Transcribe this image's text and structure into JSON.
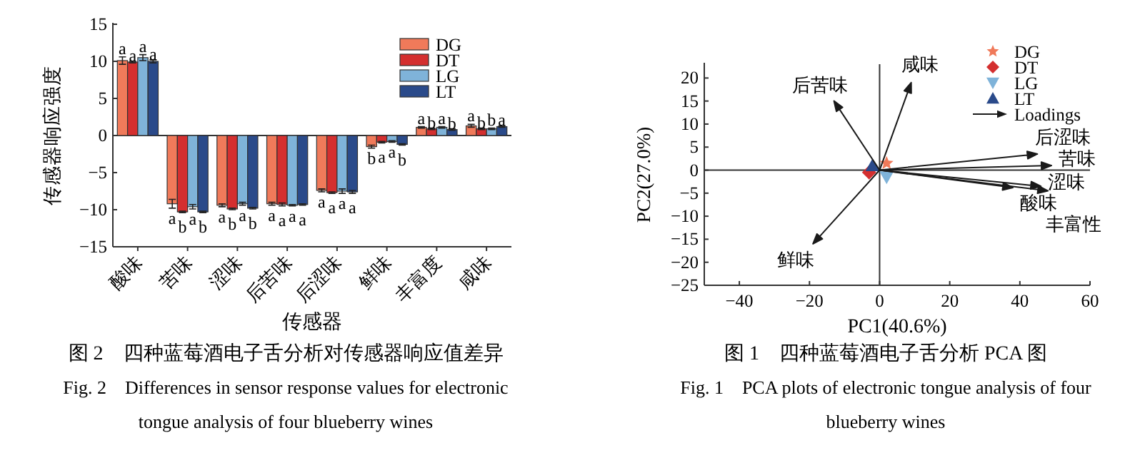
{
  "chart_data": [
    {
      "type": "bar",
      "xlabel": "传感器",
      "ylabel": "传感器响应强度",
      "categories": [
        "酸味",
        "苦味",
        "涩味",
        "后苦味",
        "后涩味",
        "鲜味",
        "丰富度",
        "咸味"
      ],
      "series": [
        {
          "name": "DG",
          "color": "#f07a5a",
          "values": [
            10.1,
            -9.2,
            -9.4,
            -9.2,
            -7.4,
            -1.5,
            1.1,
            1.3
          ],
          "errors": [
            0.5,
            0.6,
            0.2,
            0.2,
            0.2,
            0.2,
            0.1,
            0.2
          ],
          "value_labels": [
            "a",
            "a",
            "a",
            "a",
            "a",
            "b",
            "a",
            "a"
          ]
        },
        {
          "name": "DT",
          "color": "#d42f2f",
          "values": [
            9.9,
            -10.3,
            -9.9,
            -9.3,
            -7.7,
            -0.9,
            0.9,
            0.9
          ],
          "errors": [
            0.1,
            0.1,
            0.1,
            0.2,
            0.1,
            0.1,
            0.1,
            0.1
          ],
          "value_labels": [
            "a",
            "b",
            "b",
            "a",
            "a",
            "a",
            "b",
            "b"
          ]
        },
        {
          "name": "LG",
          "color": "#7fb3d9",
          "values": [
            10.5,
            -9.6,
            -9.2,
            -9.4,
            -7.5,
            -0.8,
            1.1,
            0.9
          ],
          "errors": [
            0.4,
            0.3,
            0.2,
            0.1,
            0.3,
            0.1,
            0.1,
            0.1
          ],
          "value_labels": [
            "a",
            "a",
            "a",
            "a",
            "a",
            "a",
            "a",
            "b"
          ]
        },
        {
          "name": "LT",
          "color": "#2a4a8a",
          "values": [
            10.0,
            -10.3,
            -9.8,
            -9.3,
            -7.6,
            -1.2,
            0.8,
            1.2
          ],
          "errors": [
            0.2,
            0.1,
            0.1,
            0.1,
            0.2,
            0.1,
            0.1,
            0.1
          ],
          "value_labels": [
            "a",
            "b",
            "b",
            "a",
            "a",
            "b",
            "b",
            "a"
          ]
        }
      ],
      "ylim": [
        -15,
        15
      ],
      "yticks": [
        -15,
        -10,
        -5,
        0,
        5,
        10,
        15
      ],
      "legend": "top right",
      "ref_lines": [
        {
          "axis": "y",
          "value": 0,
          "color": "#333333"
        }
      ],
      "annotations": [
        "图 2　四种蓝莓酒电子舌分析对传感器响应值差异",
        "Fig. 2　Differences in sensor response values for electronic tongue analysis of four blueberry wines"
      ]
    },
    {
      "type": "scatter",
      "xlabel": "PC1(40.6%)",
      "ylabel": "PC2(27.0%)",
      "series": [
        {
          "name": "DG",
          "color": "#f07a5a",
          "marker": "star",
          "x": [
            2
          ],
          "values": [
            1.5
          ]
        },
        {
          "name": "DT",
          "color": "#d42f2f",
          "marker": "diamond",
          "x": [
            -3
          ],
          "values": [
            -0.5
          ]
        },
        {
          "name": "LG",
          "color": "#7fb3d9",
          "marker": "triangle_down",
          "x": [
            2
          ],
          "values": [
            -1.5
          ]
        },
        {
          "name": "LT",
          "color": "#2a4a8a",
          "marker": "triangle",
          "x": [
            -2
          ],
          "values": [
            1
          ]
        },
        {
          "name": "后苦味",
          "type": "line",
          "color": "#1a1a1a",
          "x": [
            0,
            -13
          ],
          "values": [
            0,
            15
          ]
        },
        {
          "name": "咸味",
          "type": "line",
          "color": "#1a1a1a",
          "x": [
            0,
            9
          ],
          "values": [
            0,
            19
          ]
        },
        {
          "name": "后涩味",
          "type": "line",
          "color": "#1a1a1a",
          "x": [
            0,
            45
          ],
          "values": [
            0,
            3.5
          ]
        },
        {
          "name": "苦味",
          "type": "line",
          "color": "#1a1a1a",
          "x": [
            0,
            49
          ],
          "values": [
            0,
            1
          ]
        },
        {
          "name": "涩味",
          "type": "line",
          "color": "#1a1a1a",
          "x": [
            0,
            46
          ],
          "values": [
            0,
            -3.5
          ]
        },
        {
          "name": "酸味",
          "type": "line",
          "color": "#1a1a1a",
          "x": [
            0,
            38
          ],
          "values": [
            0,
            -3.8
          ]
        },
        {
          "name": "丰富性",
          "type": "line",
          "color": "#1a1a1a",
          "x": [
            0,
            48
          ],
          "values": [
            0,
            -4.5
          ]
        },
        {
          "name": "鲜味",
          "type": "line",
          "color": "#1a1a1a",
          "x": [
            0,
            -19
          ],
          "values": [
            0,
            -16
          ]
        }
      ],
      "legend_title": "Loadings",
      "xlim": [
        -50,
        60
      ],
      "xticks": [
        -40,
        -20,
        0,
        20,
        40,
        60
      ],
      "ylim": [
        -25,
        23
      ],
      "yticks": [
        -25,
        -20,
        -15,
        -10,
        -5,
        0,
        5,
        10,
        15,
        20
      ],
      "legend": "top right",
      "ref_lines": [
        {
          "axis": "x",
          "value": 0,
          "color": "#333333"
        },
        {
          "axis": "y",
          "value": 0,
          "color": "#333333"
        }
      ],
      "annotations": [
        "图 1　四种蓝莓酒电子舌分析 PCA 图",
        "Fig. 1　PCA plots of electronic tongue analysis of four blueberry wines"
      ]
    }
  ]
}
